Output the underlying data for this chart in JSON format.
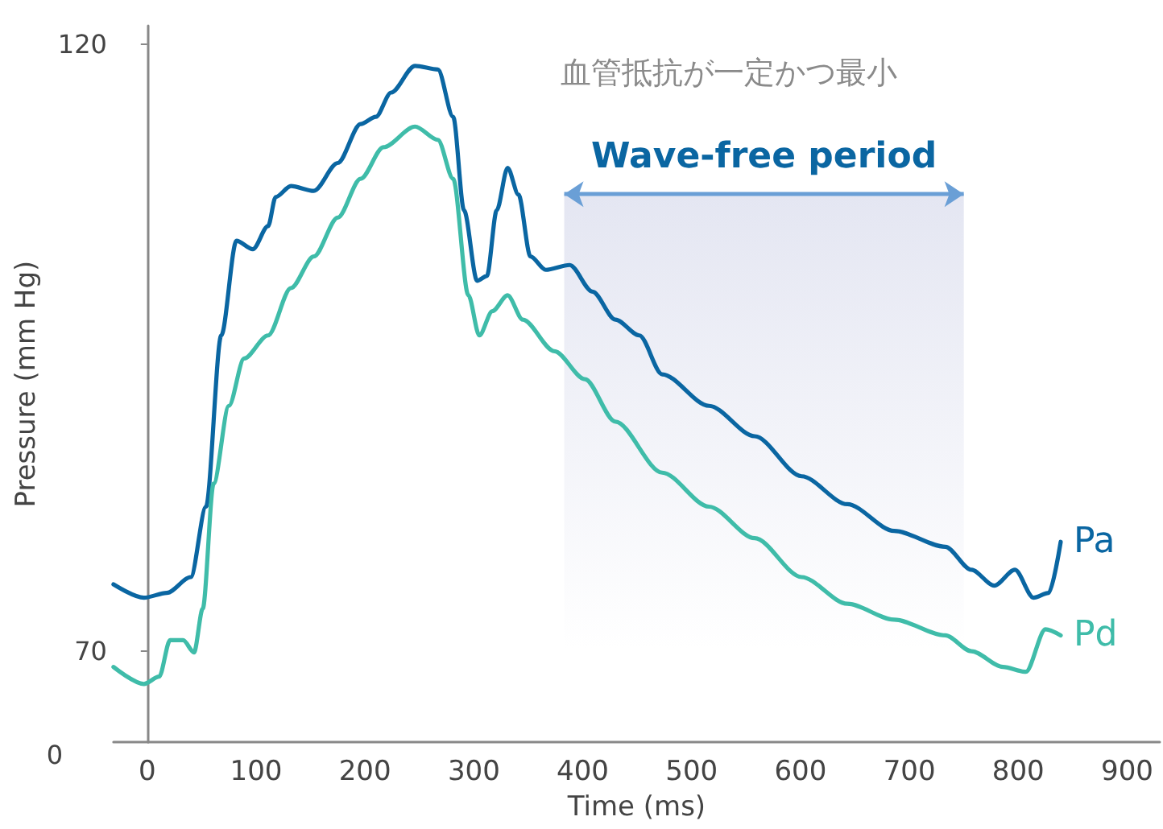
{
  "chart_data": {
    "type": "line",
    "xlabel": "Time (ms)",
    "ylabel": "Pressure (mm Hg)",
    "xlim": [
      -31,
      930
    ],
    "xticks": [
      0,
      100,
      200,
      300,
      400,
      500,
      600,
      700,
      800,
      900
    ],
    "ylim": [
      62.5,
      121.5
    ],
    "yticks": [
      70,
      120
    ],
    "annotations": [
      "血管抵抗が一定かつ最小",
      "0"
    ],
    "bands": [
      {
        "axis": "x",
        "from": 383,
        "to": 750,
        "label": "Wave-free period",
        "color": "#e4e6f2"
      }
    ],
    "legend": false,
    "grid": false,
    "marker": "none",
    "line_style": "solid",
    "series": [
      {
        "name": "Pa",
        "color": "#0a66a2",
        "x": [
          -31,
          -3,
          18,
          40,
          54,
          68,
          82,
          97,
          111,
          118,
          132,
          153,
          175,
          196,
          210,
          224,
          246,
          267,
          281,
          291,
          303,
          312,
          321,
          331,
          341,
          352,
          366,
          388,
          409,
          430,
          452,
          473,
          516,
          558,
          601,
          643,
          686,
          733,
          757,
          778,
          797,
          814,
          828,
          839
        ],
        "values": [
          75.5,
          74.4,
          74.8,
          76.1,
          81.9,
          96,
          103.8,
          103.1,
          105,
          107.4,
          108.3,
          107.9,
          110.2,
          113.4,
          114,
          116,
          118.2,
          117.9,
          114,
          106.3,
          100.5,
          100.9,
          106.3,
          109.8,
          107.6,
          102.5,
          101.4,
          101.8,
          99.6,
          97.3,
          96,
          92.8,
          90.2,
          87.7,
          84.4,
          82.1,
          79.9,
          78.6,
          76.7,
          75.4,
          76.7,
          74.4,
          74.8,
          79
        ]
      },
      {
        "name": "Pd",
        "color": "#3fbca9",
        "x": [
          -31,
          -3,
          11,
          21,
          33,
          43,
          51,
          61,
          75,
          89,
          111,
          132,
          153,
          175,
          196,
          217,
          246,
          267,
          281,
          295,
          305,
          317,
          331,
          345,
          374,
          402,
          430,
          473,
          516,
          558,
          601,
          643,
          686,
          733,
          757,
          786,
          807,
          825,
          839
        ],
        "values": [
          68.7,
          67.3,
          67.9,
          70.9,
          70.9,
          69.9,
          73.5,
          83.8,
          90.2,
          94.1,
          96,
          99.9,
          102.5,
          105.7,
          108.9,
          111.5,
          113.2,
          112.1,
          108.9,
          99.3,
          96,
          98,
          99.3,
          97.3,
          94.7,
          92.4,
          88.9,
          84.7,
          81.9,
          79.3,
          76.1,
          73.9,
          72.6,
          71.3,
          70,
          68.7,
          68.3,
          71.8,
          71.3
        ]
      }
    ]
  }
}
